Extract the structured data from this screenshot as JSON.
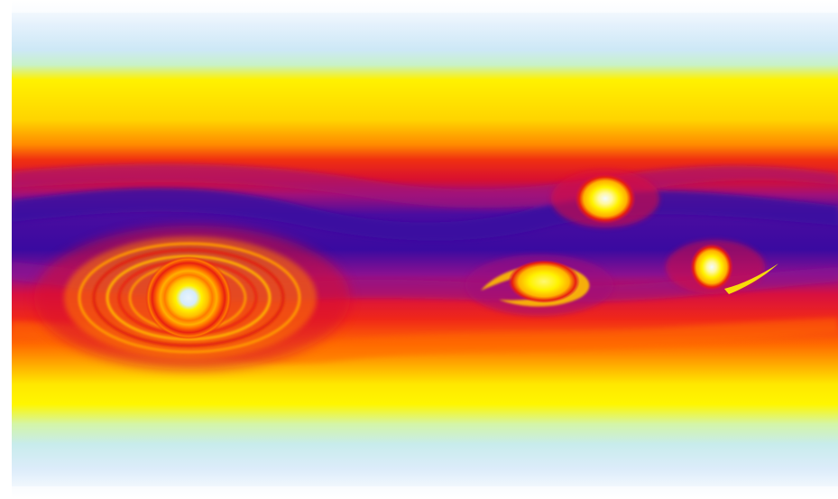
{
  "image": {
    "subject": "vortex-field-visualization",
    "colormap": [
      "#ffffff",
      "#d6ecfb",
      "#c8f2c8",
      "#fff200",
      "#ff6a00",
      "#e01010",
      "#a0107a",
      "#3a0aa0"
    ],
    "colors": {
      "background": "#ffffff",
      "deep_band": "#3a0aa0",
      "mid_band": "#a0107a",
      "warm_band": "#e01010",
      "orange_band": "#ff6a00",
      "yellow_band": "#fff200",
      "pale_band": "#c8f2c8",
      "sky_band": "#d6ecfb",
      "vortex_core": "#e6f4ff"
    }
  }
}
